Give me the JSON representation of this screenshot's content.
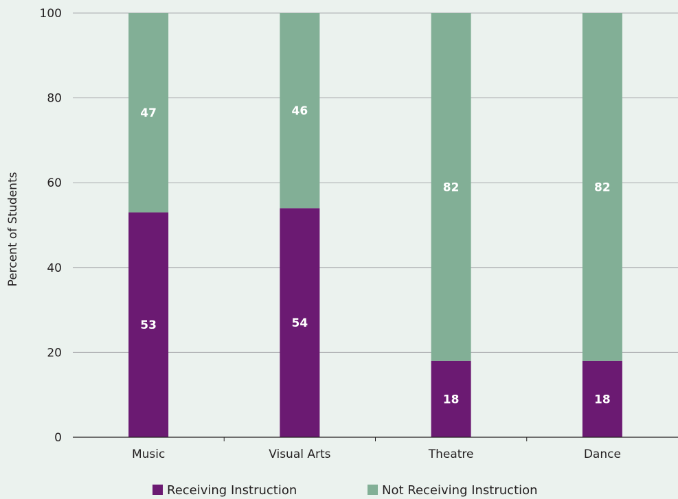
{
  "chart_data": {
    "type": "bar",
    "stacked": true,
    "categories": [
      "Music",
      "Visual Arts",
      "Theatre",
      "Dance"
    ],
    "series": [
      {
        "name": "Receiving Instruction",
        "values": [
          53,
          54,
          18,
          18
        ],
        "color": "#6b1a72"
      },
      {
        "name": "Not Receiving Instruction",
        "values": [
          47,
          46,
          82,
          82
        ],
        "color": "#82af96"
      }
    ],
    "ylabel": "Percent of Students",
    "ylim": [
      0,
      100
    ],
    "yticks": [
      0,
      20,
      40,
      60,
      80,
      100
    ],
    "grid": true,
    "legend_position": "bottom"
  },
  "colors": {
    "background": "#ebf2ee",
    "grid": "#a7a9ac",
    "axis": "#231f20",
    "label_text": "#ffffff"
  }
}
